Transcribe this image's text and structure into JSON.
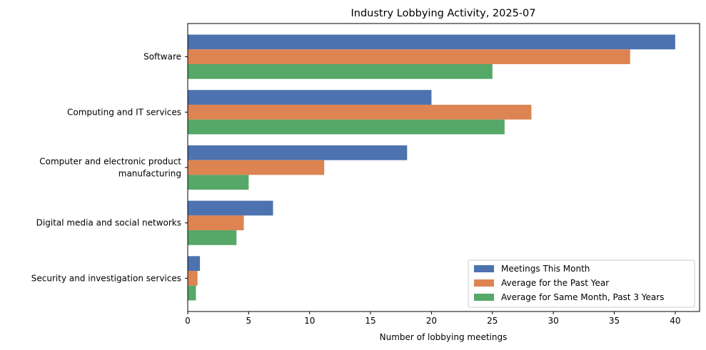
{
  "chart_data": {
    "type": "bar",
    "orientation": "horizontal",
    "title": "Industry Lobbying Activity, 2025-07",
    "xlabel": "Number of lobbying meetings",
    "ylabel": "",
    "xlim": [
      0,
      42
    ],
    "xticks": [
      0,
      5,
      10,
      15,
      20,
      25,
      30,
      35,
      40
    ],
    "grid": false,
    "legend_position": "bottom-right",
    "categories": [
      "Software",
      "Computing and IT services",
      "Computer and electronic product manufacturing",
      "Digital media and social networks",
      "Security and investigation services"
    ],
    "category_label_lines": [
      [
        "Software"
      ],
      [
        "Computing and IT services"
      ],
      [
        "Computer and electronic product",
        "manufacturing"
      ],
      [
        "Digital media and social networks"
      ],
      [
        "Security and investigation services"
      ]
    ],
    "series": [
      {
        "name": "Meetings This Month",
        "color": "#4c72b0",
        "values": [
          40,
          20,
          18,
          7,
          1
        ]
      },
      {
        "name": "Average for the Past Year",
        "color": "#dd8452",
        "values": [
          36.3,
          28.2,
          11.2,
          4.6,
          0.8
        ]
      },
      {
        "name": "Average for Same Month, Past 3 Years",
        "color": "#55a868",
        "values": [
          25,
          26,
          5,
          4,
          0.67
        ]
      }
    ]
  }
}
